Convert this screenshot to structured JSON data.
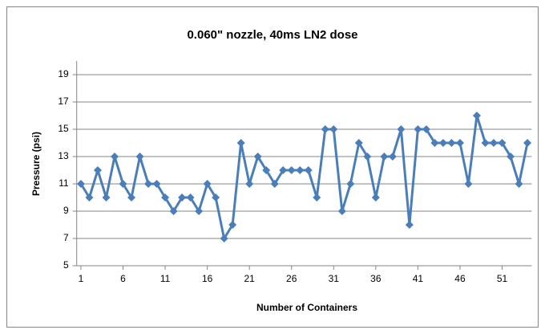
{
  "chart_data": {
    "type": "line",
    "title": "0.060\" nozzle, 40ms LN2 dose",
    "x_label": "Number of Containers",
    "y_label": "Pressure (psi)",
    "x": [
      1,
      2,
      3,
      4,
      5,
      6,
      7,
      8,
      9,
      10,
      11,
      12,
      13,
      14,
      15,
      16,
      17,
      18,
      19,
      20,
      21,
      22,
      23,
      24,
      25,
      26,
      27,
      28,
      29,
      30,
      31,
      32,
      33,
      34,
      35,
      36,
      37,
      38,
      39,
      40,
      41,
      42,
      43,
      44,
      45,
      46,
      47,
      48,
      49,
      50,
      51,
      52,
      53,
      54
    ],
    "series": [
      {
        "name": "Pressure",
        "color": "#4a7ebb",
        "values": [
          11,
          10,
          12,
          10,
          13,
          11,
          10,
          13,
          11,
          11,
          10,
          9,
          10,
          10,
          9,
          11,
          10,
          7,
          8,
          14,
          11,
          13,
          12,
          11,
          12,
          12,
          12,
          12,
          10,
          15,
          15,
          9,
          11,
          14,
          13,
          10,
          13,
          13,
          15,
          8,
          15,
          15,
          14,
          14,
          14,
          14,
          11,
          16,
          14,
          14,
          14,
          13,
          11,
          14
        ]
      }
    ],
    "xlim": [
      0.5,
      54.5
    ],
    "xticks": [
      1,
      6,
      11,
      16,
      21,
      26,
      31,
      36,
      41,
      46,
      51
    ],
    "ylim": [
      5,
      20
    ],
    "yticks": [
      5,
      7,
      9,
      11,
      13,
      15,
      17,
      19
    ],
    "grid": true
  }
}
